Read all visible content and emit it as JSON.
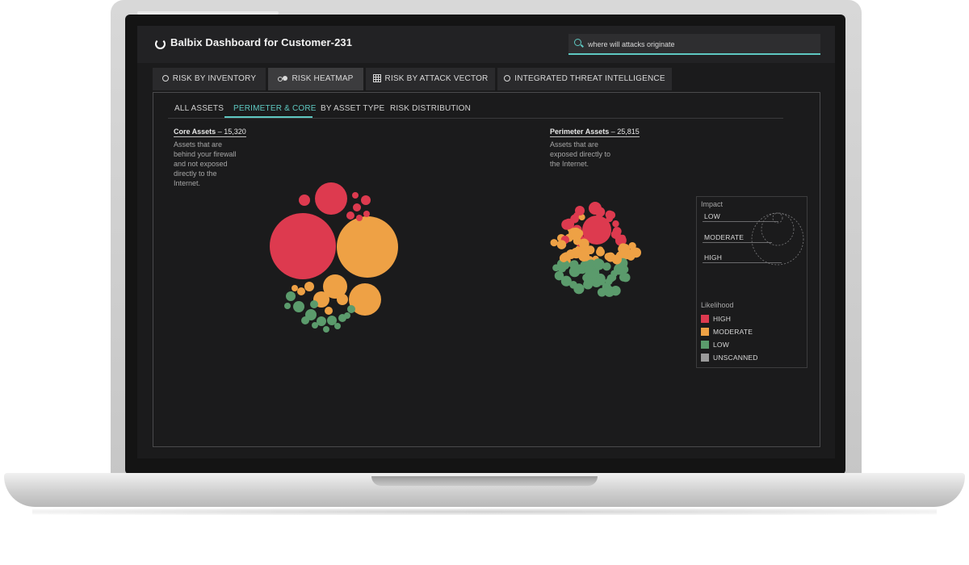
{
  "app": {
    "title": "Balbix Dashboard for Customer-231"
  },
  "search": {
    "value": "where will attacks originate"
  },
  "tabs": [
    {
      "label": "RISK BY INVENTORY",
      "icon": "ring-icon",
      "active": false
    },
    {
      "label": "RISK HEATMAP",
      "icon": "bubbles-icon",
      "active": true
    },
    {
      "label": "RISK BY ATTACK VECTOR",
      "icon": "grid-icon",
      "active": false
    },
    {
      "label": "INTEGRATED THREAT INTELLIGENCE",
      "icon": "ring-icon",
      "active": false
    }
  ],
  "subtabs": [
    {
      "label": "ALL ASSETS",
      "active": false
    },
    {
      "label": "PERIMETER & CORE",
      "active": true
    },
    {
      "label": "BY ASSET TYPE",
      "active": false
    },
    {
      "label": "RISK DISTRIBUTION",
      "active": false
    }
  ],
  "core": {
    "title": "Core Assets",
    "separator": "–",
    "count": "15,320",
    "description": [
      "Assets that are",
      "behind your firewall",
      "and not exposed",
      "directly to the",
      "Internet."
    ]
  },
  "perimeter": {
    "title": "Perimeter Assets",
    "separator": "–",
    "count": "25,815",
    "description": [
      "Assets that are",
      "exposed directly to",
      "the Internet."
    ]
  },
  "legend": {
    "impact_title": "Impact",
    "impact": [
      "LOW",
      "MODERATE",
      "HIGH"
    ],
    "likelihood_title": "Likelihood",
    "likelihood": [
      {
        "label": "HIGH",
        "color": "#dd3a4f"
      },
      {
        "label": "MODERATE",
        "color": "#eea145"
      },
      {
        "label": "LOW",
        "color": "#5b9b6c"
      },
      {
        "label": "UNSCANNED",
        "color": "#9a9a9a"
      }
    ]
  },
  "colors": {
    "accent": "#5ec8c1",
    "high": "#dd3a4f",
    "moderate": "#eea145",
    "low": "#5b9b6c",
    "unscanned": "#9a9a9a"
  }
}
